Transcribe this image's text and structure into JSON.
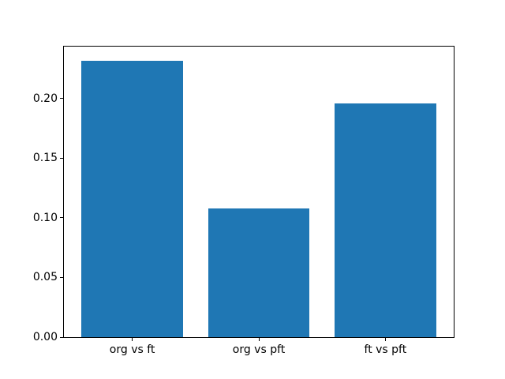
{
  "chart_data": {
    "type": "bar",
    "categories": [
      "org vs ft",
      "org vs pft",
      "ft vs pft"
    ],
    "values": [
      0.232,
      0.108,
      0.196
    ],
    "title": "",
    "xlabel": "",
    "ylabel": "",
    "ylim": [
      0,
      0.2436
    ],
    "xlim": [
      -0.54,
      2.54
    ],
    "bar_width": 0.8,
    "yticks": [
      0.0,
      0.05,
      0.1,
      0.15,
      0.2
    ],
    "ytick_labels": [
      "0.00",
      "0.05",
      "0.10",
      "0.15",
      "0.20"
    ],
    "bar_color": "#1f77b4",
    "spine_color": "#000000",
    "background_color": "#ffffff",
    "grid": false,
    "legend": null
  }
}
